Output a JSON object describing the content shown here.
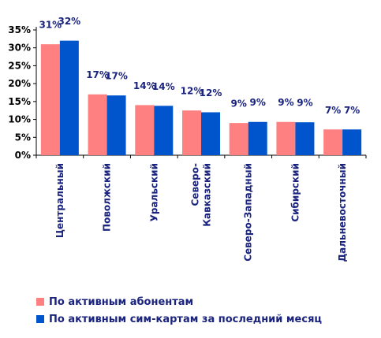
{
  "chart_data": {
    "type": "bar",
    "categories": [
      [
        "Центральный"
      ],
      [
        "Поволжский"
      ],
      [
        "Уральский"
      ],
      [
        "Северо-",
        "Кавказский"
      ],
      [
        "Северо-Западный"
      ],
      [
        "Сибирский"
      ],
      [
        "Дальневосточный"
      ]
    ],
    "series": [
      {
        "name": "По активным абонентам",
        "color": "#ff8080",
        "values": [
          31,
          17,
          14,
          12.5,
          9,
          9.3,
          7.2
        ],
        "labels": [
          "31%",
          "17%",
          "14%",
          "12%",
          "9%",
          "9%",
          "7%"
        ]
      },
      {
        "name": "По активным сим-картам за последний месяц",
        "color": "#0055cc",
        "values": [
          32,
          16.7,
          13.8,
          12,
          9.3,
          9.2,
          7.2
        ],
        "labels": [
          "32%",
          "17%",
          "14%",
          "12%",
          "9%",
          "9%",
          "7%"
        ]
      }
    ],
    "yticks": [
      "0%",
      "5%",
      "10%",
      "15%",
      "20%",
      "25%",
      "30%",
      "35%"
    ],
    "ylim": [
      0,
      35
    ],
    "legend_position": "bottom"
  }
}
